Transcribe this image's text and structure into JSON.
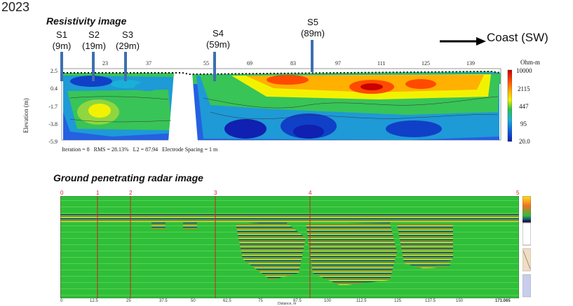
{
  "year": "2023",
  "resistivity": {
    "title": "Resistivity image",
    "sites": [
      {
        "name": "S1",
        "dist": "(9m)"
      },
      {
        "name": "S2",
        "dist": "(19m)"
      },
      {
        "name": "S3",
        "dist": "(29m)"
      },
      {
        "name": "S4",
        "dist": "(59m)"
      },
      {
        "name": "S5",
        "dist": "(89m)"
      }
    ],
    "x_ticks": [
      "23",
      "37",
      "55",
      "69",
      "83",
      "97",
      "111",
      "125",
      "139"
    ],
    "y_ticks": [
      "2.5",
      "0.4",
      "-1.7",
      "-3.8",
      "-5.9"
    ],
    "y_axis_label": "Elevation (m)",
    "stats": "Iteration = 8   RMS = 28.13%   L2 = 87.94   Electrode Spacing = 1 m",
    "legend_unit": "Ohm-m",
    "legend_values": [
      "10000",
      "2115",
      "447",
      "95",
      "20.0"
    ]
  },
  "coast_label": "Coast (SW)",
  "gpr": {
    "title": "Ground penetrating radar image",
    "markers": [
      "0",
      "1",
      "2",
      "3",
      "4",
      "5"
    ],
    "x_ticks": [
      "0",
      "12.5",
      "25",
      "37.5",
      "50",
      "62.5",
      "75",
      "87.5",
      "100",
      "112.5",
      "125",
      "137.5",
      "150",
      "171.065"
    ],
    "x_axis_label": "Distance, m"
  },
  "colors": {
    "site_bar": "#3e6fb0",
    "gpr_background": "#2fbf3a",
    "gpr_marker": "#d22222"
  }
}
